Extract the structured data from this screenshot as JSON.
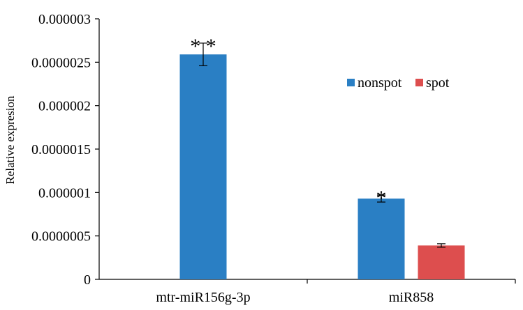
{
  "chart_data": {
    "type": "bar",
    "title": "",
    "xlabel": "",
    "ylabel": "Relative expresion",
    "ylim": [
      0,
      3e-06
    ],
    "yticks": [
      "0",
      "0.0000005",
      "0.000001",
      "0.0000015",
      "0.000002",
      "0.0000025",
      "0.000003"
    ],
    "ytick_values": [
      0,
      5e-07,
      1e-06,
      1.5e-06,
      2e-06,
      2.5e-06,
      3e-06
    ],
    "categories": [
      "mtr-miR156g-3p",
      "miR858"
    ],
    "series": [
      {
        "name": "nonspot",
        "color": "#2a7fc4",
        "values": [
          2.59e-06,
          9.3e-07
        ],
        "errors": [
          1.3e-07,
          4e-08
        ]
      },
      {
        "name": "spot",
        "color": "#dd4e4e",
        "values": [
          null,
          3.9e-07
        ],
        "errors": [
          null,
          2e-08
        ]
      }
    ],
    "annotations": [
      {
        "category": 0,
        "series": 0,
        "text": "* *"
      },
      {
        "category": 1,
        "series": 0,
        "text": "*"
      }
    ],
    "legend_position": "top-right",
    "grid": false
  }
}
